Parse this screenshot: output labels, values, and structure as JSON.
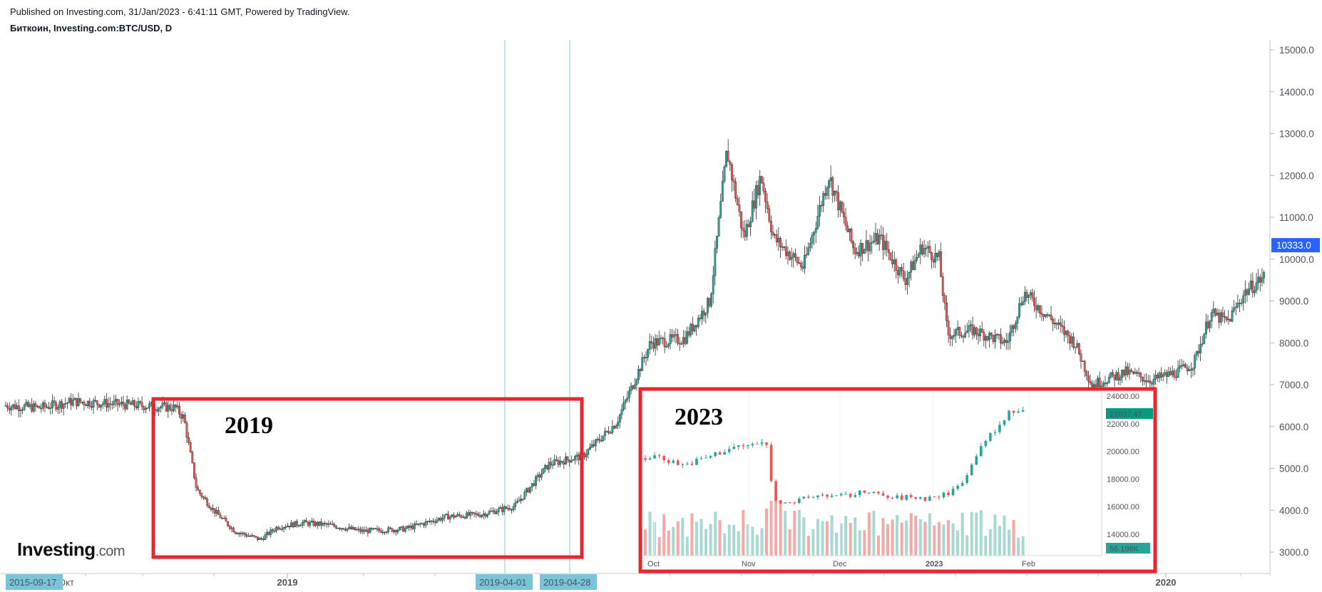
{
  "header": {
    "published": "Published on Investing.com, 31/Jan/2023 - 6:41:11 GMT, Powered by TradingView.",
    "symbol": "Биткоин, Investing.com:BTC/USD, D"
  },
  "logo": {
    "main": "Investing",
    "suffix": ".com"
  },
  "colors": {
    "up": "#26a69a",
    "down": "#ef5350",
    "box": "#e8262d",
    "axis_badge": "#79c4d8",
    "price_badge": "#2962ff",
    "vline": "#7fcfdc"
  },
  "chart_data": {
    "type": "candlestick",
    "y_axis": {
      "side": "right",
      "ylim": [
        2700,
        15300
      ],
      "ticks": [
        "15000.0",
        "14000.0",
        "13000.0",
        "12000.0",
        "11000.0",
        "10000.0",
        "9000.0",
        "8000.0",
        "7000.0",
        "6000.0",
        "5000.0",
        "4000.0",
        "3000.0"
      ]
    },
    "last_price": "10333.0",
    "x_axis": {
      "start_badge": "2015-09-17",
      "partial_label": "Окт",
      "labels": [
        "2019",
        "2020"
      ],
      "markers": [
        "2019-04-01",
        "2019-04-28"
      ]
    },
    "series": [
      {
        "name": "BTC/USD, D",
        "path": [
          [
            0,
            6500
          ],
          [
            40,
            6450
          ],
          [
            80,
            6600
          ],
          [
            120,
            6550
          ],
          [
            160,
            6500
          ],
          [
            200,
            6450
          ],
          [
            210,
            6200
          ],
          [
            225,
            4500
          ],
          [
            245,
            4000
          ],
          [
            270,
            3500
          ],
          [
            300,
            3300
          ],
          [
            320,
            3600
          ],
          [
            350,
            3700
          ],
          [
            380,
            3650
          ],
          [
            420,
            3500
          ],
          [
            470,
            3550
          ],
          [
            520,
            3850
          ],
          [
            560,
            3900
          ],
          [
            600,
            4100
          ],
          [
            640,
            5100
          ],
          [
            680,
            5300
          ],
          [
            720,
            6100
          ],
          [
            760,
            8000
          ],
          [
            800,
            8100
          ],
          [
            830,
            9000
          ],
          [
            850,
            12600
          ],
          [
            870,
            10500
          ],
          [
            890,
            12000
          ],
          [
            905,
            10500
          ],
          [
            940,
            9800
          ],
          [
            970,
            12000
          ],
          [
            1000,
            10200
          ],
          [
            1030,
            10500
          ],
          [
            1060,
            9500
          ],
          [
            1080,
            10300
          ],
          [
            1100,
            10000
          ],
          [
            1110,
            8200
          ],
          [
            1140,
            8300
          ],
          [
            1180,
            8000
          ],
          [
            1200,
            9200
          ],
          [
            1230,
            8600
          ],
          [
            1260,
            8000
          ],
          [
            1280,
            7000
          ],
          [
            1320,
            7300
          ],
          [
            1350,
            7100
          ],
          [
            1380,
            7300
          ],
          [
            1400,
            7500
          ],
          [
            1420,
            8700
          ],
          [
            1440,
            8500
          ],
          [
            1460,
            9200
          ],
          [
            1490,
            9700
          ],
          [
            1505,
            10300
          ]
        ]
      }
    ],
    "annotations": [
      {
        "type": "box",
        "label": "2019"
      },
      {
        "type": "inset",
        "label": "2023",
        "inset": {
          "y_ticks": [
            "24000.00",
            "22000.00",
            "20000.00",
            "18000.00",
            "16000.00",
            "14000.00"
          ],
          "x_labels": [
            "Oct",
            "Nov",
            "Dec",
            "2023",
            "Feb"
          ],
          "price_badge": "22837.47",
          "volume_badge": "56.198K",
          "path": [
            [
              0,
              19500
            ],
            [
              15,
              19700
            ],
            [
              30,
              19300
            ],
            [
              45,
              19000
            ],
            [
              60,
              19300
            ],
            [
              75,
              19600
            ],
            [
              90,
              20000
            ],
            [
              105,
              20300
            ],
            [
              120,
              20400
            ],
            [
              135,
              20600
            ],
            [
              145,
              20400
            ],
            [
              150,
              17000
            ],
            [
              155,
              16200
            ],
            [
              165,
              16500
            ],
            [
              175,
              16300
            ],
            [
              190,
              16600
            ],
            [
              210,
              16900
            ],
            [
              225,
              16700
            ],
            [
              240,
              16800
            ],
            [
              255,
              17000
            ],
            [
              265,
              17200
            ],
            [
              275,
              16800
            ],
            [
              290,
              16600
            ],
            [
              310,
              16700
            ],
            [
              330,
              16600
            ],
            [
              340,
              16700
            ],
            [
              355,
              16900
            ],
            [
              370,
              17500
            ],
            [
              385,
              19000
            ],
            [
              395,
              20500
            ],
            [
              405,
              21000
            ],
            [
              415,
              21500
            ],
            [
              425,
              22600
            ],
            [
              435,
              23000
            ],
            [
              445,
              22800
            ],
            [
              450,
              23100
            ]
          ]
        }
      }
    ]
  }
}
